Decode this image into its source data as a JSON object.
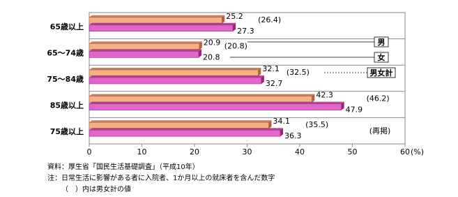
{
  "chart_data": {
    "type": "bar",
    "orientation": "horizontal",
    "categories": [
      "65歳以上",
      "65～74歳",
      "75～84歳",
      "85歳以上",
      "75歳以上"
    ],
    "series": [
      {
        "name": "男",
        "color": "#f4b183",
        "values": [
          25.2,
          20.9,
          32.1,
          42.3,
          34.1
        ]
      },
      {
        "name": "女",
        "color": "#e066c8",
        "values": [
          27.3,
          20.8,
          32.7,
          47.9,
          36.3
        ]
      },
      {
        "name": "男女計",
        "values": [
          26.4,
          20.8,
          32.5,
          46.2,
          35.5
        ],
        "value_labels": [
          "(26.4)",
          "(20.8)",
          "(32.5)",
          "(46.2)",
          "(35.5)"
        ]
      }
    ],
    "xlim": [
      0,
      60
    ],
    "xticks": [
      0,
      10,
      20,
      30,
      40,
      50,
      60
    ],
    "x_unit": "(%)",
    "annotation": "(再掲)",
    "notes": [
      "資料：厚生省「国民生活基礎調査」（平成10年）",
      "注：日常生活に影響がある者に入院者、1か月以上の就床者を含んだ数字",
      "（　）内は男女計の値"
    ]
  }
}
